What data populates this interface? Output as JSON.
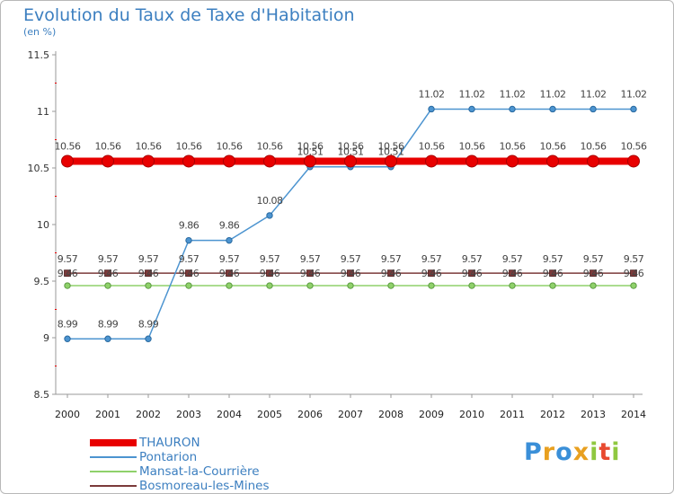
{
  "chart_data": {
    "type": "line",
    "title": "Evolution du Taux de Taxe d'Habitation",
    "subtitle": "(en %)",
    "categories": [
      "2000",
      "2001",
      "2002",
      "2003",
      "2004",
      "2005",
      "2006",
      "2007",
      "2008",
      "2009",
      "2010",
      "2011",
      "2012",
      "2013",
      "2014"
    ],
    "ylim": [
      8.5,
      11.5
    ],
    "yticks": [
      8.5,
      9,
      9.5,
      10,
      10.5,
      11,
      11.5
    ],
    "ytick_labels": [
      "8.5",
      "9",
      "9.5",
      "10",
      "10.5",
      "11",
      "11.5"
    ],
    "grid": false,
    "legend_position": "bottom-left",
    "series": [
      {
        "name": "THAURON",
        "color": "#e80000",
        "values": [
          10.56,
          10.56,
          10.56,
          10.56,
          10.56,
          10.56,
          10.56,
          10.56,
          10.56,
          10.56,
          10.56,
          10.56,
          10.56,
          10.56,
          10.56
        ],
        "labels": [
          "10.56",
          "10.56",
          "10.56",
          "10.56",
          "10.56",
          "10.56",
          "10.56",
          "10.56",
          "10.56",
          "10.56",
          "10.56",
          "10.56",
          "10.56",
          "10.56",
          "10.56"
        ]
      },
      {
        "name": "Pontarion",
        "color": "#4c94d0",
        "values": [
          8.99,
          8.99,
          8.99,
          9.86,
          9.86,
          10.08,
          10.51,
          10.51,
          10.51,
          11.02,
          11.02,
          11.02,
          11.02,
          11.02,
          11.02
        ],
        "labels": [
          "8.99",
          "8.99",
          "8.99",
          "9.86",
          "9.86",
          "10.08",
          "10.51",
          "10.51",
          "10.51",
          "11.02",
          "11.02",
          "11.02",
          "11.02",
          "11.02",
          "11.02"
        ]
      },
      {
        "name": "Mansat-la-Courrière",
        "color": "#8fd16a",
        "values": [
          9.46,
          9.46,
          9.46,
          9.46,
          9.46,
          9.46,
          9.46,
          9.46,
          9.46,
          9.46,
          9.46,
          9.46,
          9.46,
          9.46,
          9.46
        ],
        "labels": [
          "9.46",
          "9.46",
          "9.46",
          "9.46",
          "9.46",
          "9.46",
          "9.46",
          "9.46",
          "9.46",
          "9.46",
          "9.46",
          "9.46",
          "9.46",
          "9.46",
          "9.46"
        ]
      },
      {
        "name": "Bosmoreau-les-Mines",
        "color": "#7b3a3a",
        "values": [
          9.57,
          9.57,
          9.57,
          9.57,
          9.57,
          9.57,
          9.57,
          9.57,
          9.57,
          9.57,
          9.57,
          9.57,
          9.57,
          9.57,
          9.57
        ],
        "labels": [
          "9.57",
          "9.57",
          "9.57",
          "9.57",
          "9.57",
          "9.57",
          "9.57",
          "9.57",
          "9.57",
          "9.57",
          "9.57",
          "9.57",
          "9.57",
          "9.57",
          "9.57"
        ]
      }
    ]
  },
  "brand": {
    "letters": [
      "P",
      "r",
      "o",
      "x",
      "i",
      "t",
      "i"
    ],
    "colors": [
      "#3a8fd8",
      "#e8a020",
      "#3a8fd8",
      "#e8a020",
      "#8fc840",
      "#e84a30",
      "#8fc840"
    ]
  }
}
